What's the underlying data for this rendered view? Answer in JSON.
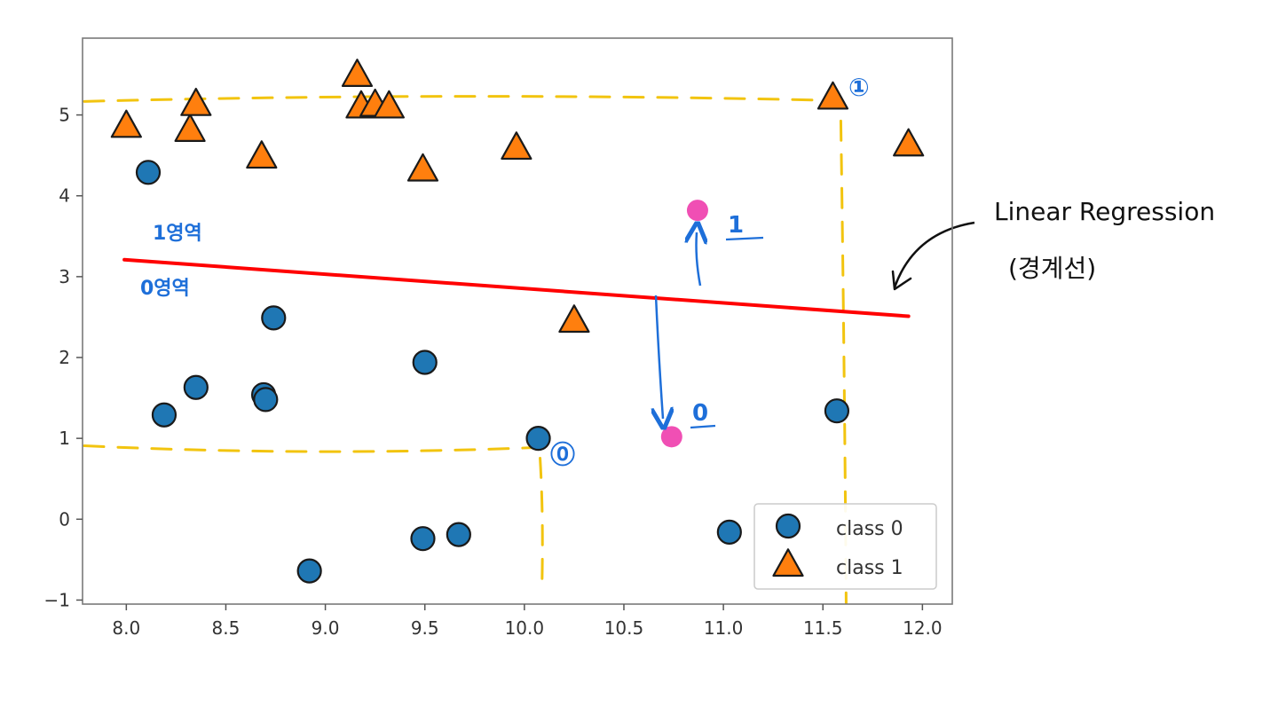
{
  "chart_data": {
    "type": "scatter",
    "title": "",
    "xlabel": "",
    "ylabel": "",
    "xlim": [
      7.78,
      12.15
    ],
    "ylim": [
      -1.05,
      5.95
    ],
    "xticks": [
      8.0,
      8.5,
      9.0,
      9.5,
      10.0,
      10.5,
      11.0,
      11.5,
      12.0
    ],
    "xtick_labels": [
      "8.0",
      "8.5",
      "9.0",
      "9.5",
      "10.0",
      "10.5",
      "11.0",
      "11.5",
      "12.0"
    ],
    "yticks": [
      -1,
      0,
      1,
      2,
      3,
      4,
      5
    ],
    "ytick_labels": [
      "−1",
      "0",
      "1",
      "2",
      "3",
      "4",
      "5"
    ],
    "grid": false,
    "legend_position": "lower-right",
    "series": [
      {
        "name": "class 0",
        "marker": "circle",
        "color": "#1f77b4",
        "points": [
          [
            8.11,
            4.29
          ],
          [
            8.19,
            1.29
          ],
          [
            8.35,
            1.63
          ],
          [
            8.69,
            1.54
          ],
          [
            8.7,
            1.48
          ],
          [
            8.74,
            2.49
          ],
          [
            8.92,
            -0.64
          ],
          [
            9.49,
            -0.24
          ],
          [
            9.5,
            1.94
          ],
          [
            9.67,
            -0.19
          ],
          [
            10.07,
            1.0
          ],
          [
            11.03,
            -0.16
          ],
          [
            11.57,
            1.34
          ]
        ]
      },
      {
        "name": "class 1",
        "marker": "triangle",
        "color": "#ff7f0e",
        "points": [
          [
            8.0,
            4.86
          ],
          [
            8.32,
            4.81
          ],
          [
            8.35,
            5.13
          ],
          [
            8.68,
            4.48
          ],
          [
            9.16,
            5.49
          ],
          [
            9.18,
            5.1
          ],
          [
            9.25,
            5.12
          ],
          [
            9.32,
            5.1
          ],
          [
            9.49,
            4.32
          ],
          [
            9.96,
            4.59
          ],
          [
            10.25,
            2.45
          ],
          [
            11.55,
            5.21
          ],
          [
            11.93,
            4.63
          ]
        ]
      }
    ],
    "regression_line": {
      "label": "Linear Regression",
      "color": "#ff0000",
      "x": [
        7.99,
        11.93
      ],
      "y": [
        3.21,
        2.51
      ]
    },
    "annotations": {
      "region_1_label": "1영역",
      "region_0_label": "0영역",
      "predict_1_label": "1",
      "predict_0_label": "0",
      "corner_1_label": "①",
      "corner_0_label": "⓪",
      "regression_title": "Linear Regression",
      "regression_subtitle": "(경계선)",
      "pink_points": [
        [
          10.87,
          3.82
        ],
        [
          10.74,
          1.02
        ]
      ],
      "pink_color": "#f04fb4",
      "ink_blue": "#1e6fd9",
      "dash_color": "#f2c40f",
      "boundary_upper_y": 5.2,
      "boundary_lower_y": 0.93,
      "boundary_right_x": 11.59,
      "boundary_left_x": 10.07
    }
  }
}
